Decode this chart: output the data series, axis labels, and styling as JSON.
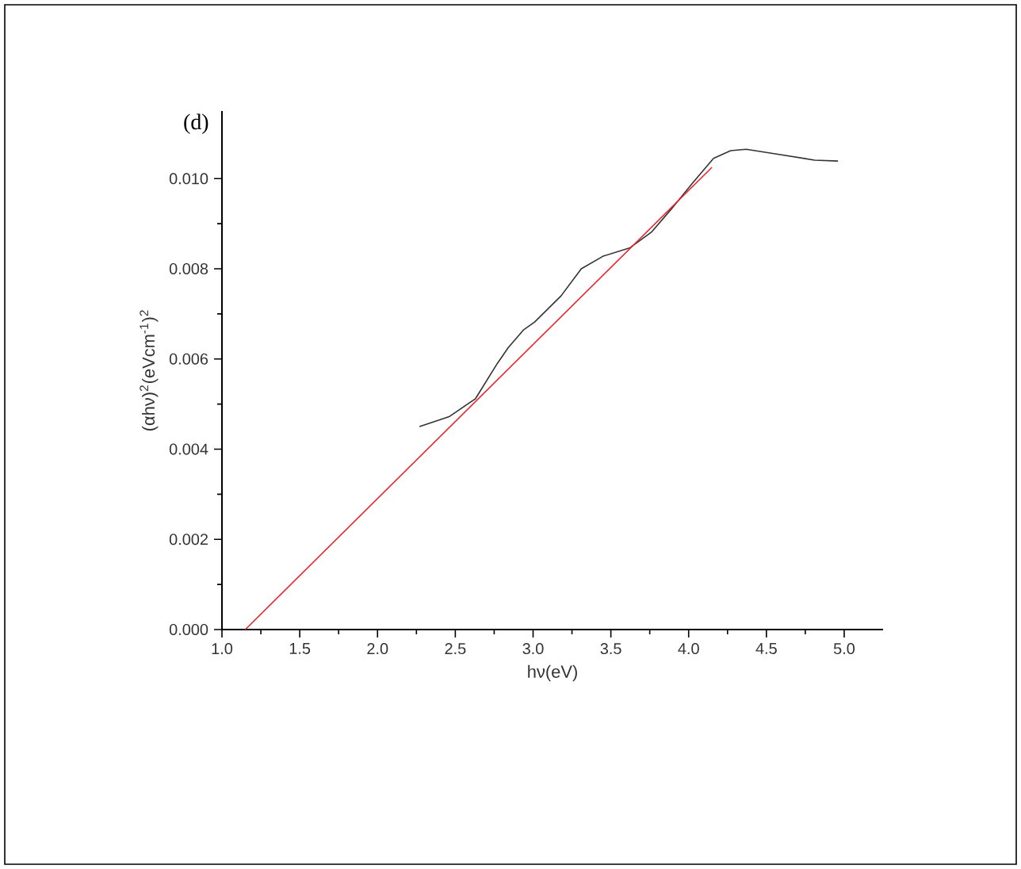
{
  "chart_data": {
    "type": "line",
    "xlabel": "hν(eV)",
    "ylabel": "(αhν)$^{2}$(eVcm$^{-1}$)$^{2}$",
    "annotations": [
      "(d)"
    ],
    "xlim": [
      1.0,
      5.25
    ],
    "ylim": [
      0,
      0.0115
    ],
    "xticks": [
      {
        "value": 1.0,
        "label": "1.0"
      },
      {
        "value": 1.5,
        "label": "1.5"
      },
      {
        "value": 2.0,
        "label": "2.0"
      },
      {
        "value": 2.5,
        "label": "2.5"
      },
      {
        "value": 3.0,
        "label": "3.0"
      },
      {
        "value": 3.5,
        "label": "3.5"
      },
      {
        "value": 4.0,
        "label": "4.0"
      },
      {
        "value": 4.5,
        "label": "4.5"
      },
      {
        "value": 5.0,
        "label": "5.0"
      }
    ],
    "yticks": [
      {
        "value": 0,
        "label": "0.000"
      },
      {
        "value": 0.002,
        "label": "0.002"
      },
      {
        "value": 0.004,
        "label": "0.004"
      },
      {
        "value": 0.006,
        "label": "0.006"
      },
      {
        "value": 0.008,
        "label": "0.008"
      },
      {
        "value": 0.01,
        "label": "0.010"
      }
    ],
    "grid": false,
    "marker": "none",
    "line_style": "solid",
    "series": [
      {
        "color": "#333333",
        "x": [
          2.27,
          2.46,
          2.63,
          2.77,
          2.84,
          2.94,
          3.01,
          3.18,
          3.31,
          3.45,
          3.62,
          3.76,
          3.89,
          4.03,
          4.16,
          4.27,
          4.37,
          4.54,
          4.81,
          4.96
        ],
        "values": [
          0.0045,
          0.00472,
          0.00512,
          0.0059,
          0.00625,
          0.00665,
          0.00682,
          0.0074,
          0.008,
          0.00828,
          0.00846,
          0.00881,
          0.00933,
          0.00992,
          0.01045,
          0.01062,
          0.01065,
          0.01056,
          0.01041,
          0.01039
        ]
      },
      {
        "color": "#e8262c",
        "x": [
          1.15,
          4.15
        ],
        "values": [
          0,
          0.01025
        ]
      }
    ]
  }
}
